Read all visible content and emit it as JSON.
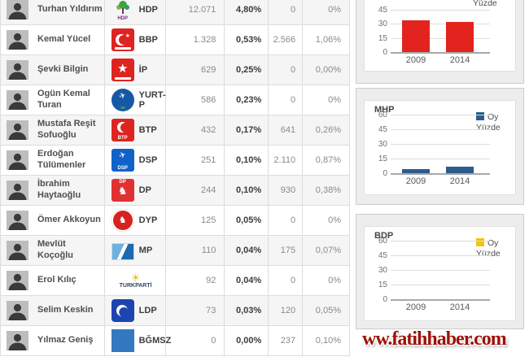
{
  "table": {
    "rows": [
      {
        "name": "Turhan Yıldırım",
        "party": "HDP",
        "logo_text": "HDP",
        "votes_a": "12.071",
        "pct_a": "4,80%",
        "votes_b": "0",
        "pct_b": "0%"
      },
      {
        "name": "Kemal Yücel",
        "party": "BBP",
        "votes_a": "1.328",
        "pct_a": "0,53%",
        "votes_b": "2.566",
        "pct_b": "1,06%"
      },
      {
        "name": "Şevki Bilgin",
        "party": "İP",
        "votes_a": "629",
        "pct_a": "0,25%",
        "votes_b": "0",
        "pct_b": "0,00%"
      },
      {
        "name": "Ogün Kemal Turan",
        "party": "YURT-P",
        "votes_a": "586",
        "pct_a": "0,23%",
        "votes_b": "0",
        "pct_b": "0%"
      },
      {
        "name": "Mustafa Reşit Sofuoğlu",
        "party": "BTP",
        "logo_text": "BTP",
        "votes_a": "432",
        "pct_a": "0,17%",
        "votes_b": "641",
        "pct_b": "0,26%"
      },
      {
        "name": "Erdoğan Tülümenler",
        "party": "DSP",
        "logo_text": "DSP",
        "votes_a": "251",
        "pct_a": "0,10%",
        "votes_b": "2.110",
        "pct_b": "0,87%"
      },
      {
        "name": "İbrahim Haytaoğlu",
        "party": "DP",
        "logo_text": "DP",
        "votes_a": "244",
        "pct_a": "0,10%",
        "votes_b": "930",
        "pct_b": "0,38%"
      },
      {
        "name": "Ömer Akkoyun",
        "party": "DYP",
        "votes_a": "125",
        "pct_a": "0,05%",
        "votes_b": "0",
        "pct_b": "0%"
      },
      {
        "name": "Mevlüt Koçoğlu",
        "party": "MP",
        "votes_a": "110",
        "pct_a": "0,04%",
        "votes_b": "175",
        "pct_b": "0,07%"
      },
      {
        "name": "Erol Kılıç",
        "party": "TURKPARTİ",
        "votes_a": "92",
        "pct_a": "0,04%",
        "votes_b": "0",
        "pct_b": "0%"
      },
      {
        "name": "Selim Keskin",
        "party": "LDP",
        "votes_a": "73",
        "pct_a": "0,03%",
        "votes_b": "120",
        "pct_b": "0,05%"
      },
      {
        "name": "Yılmaz Geniş",
        "party": "BĞMSZ",
        "votes_a": "0",
        "pct_a": "0,00%",
        "votes_b": "237",
        "pct_b": "0,10%"
      }
    ]
  },
  "chart_data": [
    {
      "type": "bar",
      "title": "",
      "categories": [
        "2009",
        "2014"
      ],
      "series": [
        {
          "name": "Yüzde",
          "values": [
            33.9,
            31.9
          ]
        }
      ],
      "color": "#e2231e",
      "yticks": [
        "45",
        "30",
        "15",
        "0"
      ],
      "ylim": [
        0,
        45
      ],
      "legend_lines": [
        "Yüzde"
      ],
      "legend_position": "right",
      "grid": true
    },
    {
      "type": "bar",
      "title": "MHP",
      "categories": [
        "2009",
        "2014"
      ],
      "series": [
        {
          "name": "Oy Yüzde",
          "values": [
            4.5,
            6.8
          ]
        }
      ],
      "color": "#2a5d8c",
      "yticks": [
        "60",
        "45",
        "30",
        "15",
        "0"
      ],
      "ylim": [
        0,
        60
      ],
      "legend_lines": [
        "Oy",
        "Yüzde"
      ],
      "legend_position": "right",
      "grid": true
    },
    {
      "type": "bar",
      "title": "BDP",
      "categories": [
        "2009",
        "2014"
      ],
      "series": [
        {
          "name": "Oy Yüzde",
          "values": [
            0,
            0
          ]
        }
      ],
      "color": "#f2c40f",
      "yticks": [
        "60",
        "45",
        "30",
        "15",
        "0"
      ],
      "ylim": [
        0,
        60
      ],
      "legend_lines": [
        "Oy",
        "Yüzde"
      ],
      "legend_position": "right",
      "grid": true
    }
  ],
  "watermark": {
    "text": "ww.fatihhaber.com",
    "color": "#9c1108"
  }
}
